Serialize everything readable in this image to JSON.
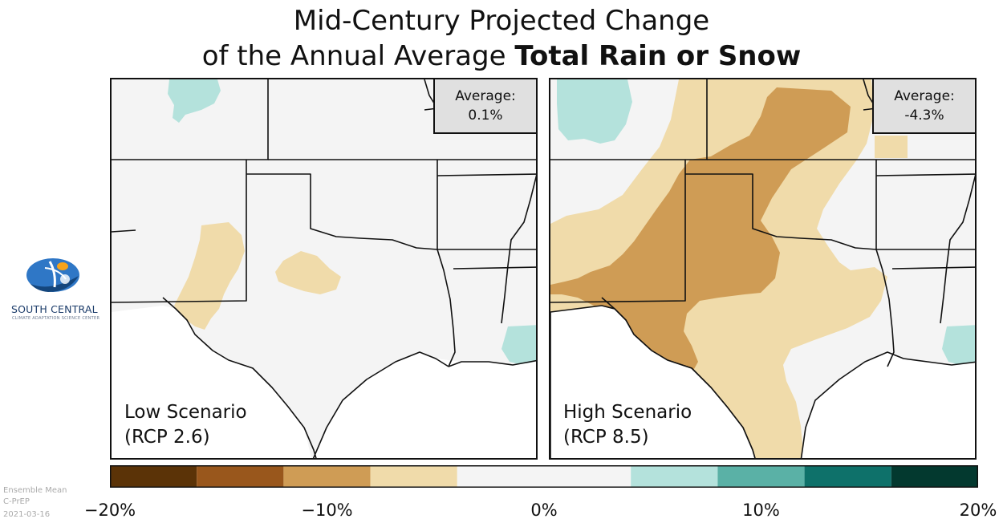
{
  "title": {
    "line1": "Mid-Century Projected Change",
    "line2_prefix": "of the Annual Average ",
    "line2_bold": "Total Rain or Snow"
  },
  "logo": {
    "name": "SOUTH CENTRAL",
    "subtitle": "CLIMATE ADAPTATION SCIENCE CENTER"
  },
  "maps": [
    {
      "scenario_line1": "Low Scenario",
      "scenario_line2": "(RCP 2.6)",
      "average_label": "Average:",
      "average_value": "0.1%"
    },
    {
      "scenario_line1": "High Scenario",
      "scenario_line2": "(RCP 8.5)",
      "average_label": "Average:",
      "average_value": "-4.3%"
    }
  ],
  "colorbar": {
    "bins": [
      {
        "from": -20,
        "to": -16,
        "color": "#5b3307"
      },
      {
        "from": -16,
        "to": -12,
        "color": "#99571c"
      },
      {
        "from": -12,
        "to": -8,
        "color": "#cf9c55"
      },
      {
        "from": -8,
        "to": -4,
        "color": "#f0dbaa"
      },
      {
        "from": -4,
        "to": 4,
        "color": "#f4f4f4"
      },
      {
        "from": 4,
        "to": 8,
        "color": "#b4e2dc"
      },
      {
        "from": 8,
        "to": 12,
        "color": "#5ab1a6"
      },
      {
        "from": 12,
        "to": 16,
        "color": "#0e716a"
      },
      {
        "from": 16,
        "to": 20,
        "color": "#03392f"
      }
    ],
    "range": [
      -20,
      20
    ],
    "ticks": [
      {
        "value": -20,
        "label": "−20%"
      },
      {
        "value": -10,
        "label": "−10%"
      },
      {
        "value": 0,
        "label": "0%"
      },
      {
        "value": 10,
        "label": "10%"
      },
      {
        "value": 20,
        "label": "20%"
      }
    ]
  },
  "footnote": {
    "line1": "Ensemble Mean",
    "line2": "C-PrEP",
    "line3": "2021-03-16"
  }
}
